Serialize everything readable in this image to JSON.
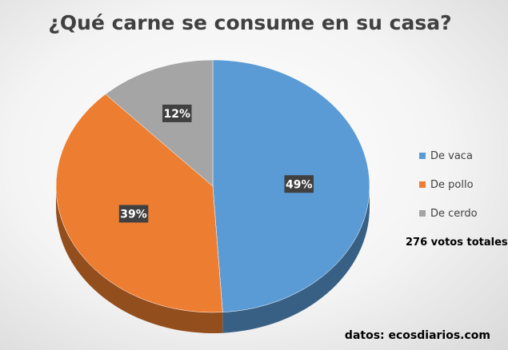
{
  "chart_data": {
    "type": "pie",
    "title": "¿Qué carne se consume en su casa?",
    "categories": [
      "De vaca",
      "De pollo",
      "De cerdo"
    ],
    "values": [
      49,
      39,
      12
    ],
    "labels": [
      "49%",
      "39%",
      "12%"
    ],
    "colors": [
      "#5b9bd5",
      "#ed7d31",
      "#a5a5a5"
    ],
    "legend_position": "right",
    "style": "3d"
  },
  "legend": {
    "items": [
      {
        "label": "De vaca",
        "color": "#5b9bd5"
      },
      {
        "label": "De pollo",
        "color": "#ed7d31"
      },
      {
        "label": "De cerdo",
        "color": "#a5a5a5"
      }
    ]
  },
  "annotations": {
    "total": "276 votos totales",
    "source": "datos: ecosdiarios.com"
  }
}
